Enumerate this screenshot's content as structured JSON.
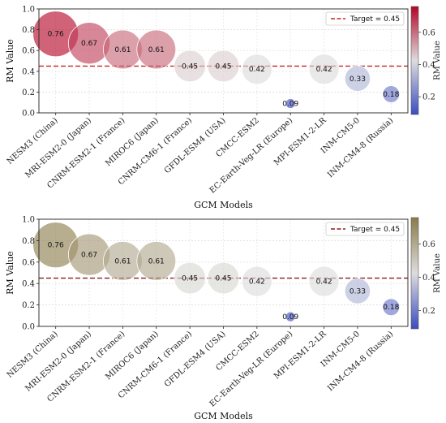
{
  "chart_data": [
    {
      "type": "scatter",
      "categories": [
        "NESM3 (China)",
        "MRI-ESM2-0 (Japan)",
        "CNRM-ESM2-1 (France)",
        "MIROC6 (Japan)",
        "CNRM-CM6-1 (France)",
        "GFDL-ESM4 (USA)",
        "CMCC-ESM2",
        "EC-Earth-Veg-LR (Europe)",
        "MPI-ESM1-2-LR",
        "INM-CM5-0",
        "INM-CM4-8 (Russia)"
      ],
      "values": [
        0.76,
        0.67,
        0.61,
        0.61,
        0.45,
        0.45,
        0.42,
        0.09,
        0.42,
        0.33,
        0.18
      ],
      "value_labels": [
        "0.76",
        "0.67",
        "0.61",
        "0.61",
        "0.45",
        "0.45",
        "0.42",
        "0.09",
        "0.42",
        "0.33",
        "0.18"
      ],
      "xlabel": "GCM Models",
      "ylabel": "RM Value",
      "ylim": [
        0.0,
        1.0
      ],
      "yticks": [
        "0.0",
        "0.2",
        "0.4",
        "0.6",
        "0.8",
        "1.0"
      ],
      "target": {
        "value": 0.45,
        "label": "Target = 0.45",
        "color": "#c62828"
      },
      "legend_position": "top-right",
      "grid": true,
      "colorbar": {
        "label": "RM Value",
        "ticks": [
          "0.2",
          "0.4",
          "0.6"
        ],
        "range": [
          0.09,
          0.76
        ],
        "colormap": "coolwarm",
        "colors": [
          "#3b4cc0",
          "#dddddd",
          "#b40426"
        ]
      }
    },
    {
      "type": "scatter",
      "categories": [
        "NESM3 (China)",
        "MRI-ESM2-0 (Japan)",
        "CNRM-ESM2-1 (France)",
        "MIROC6 (Japan)",
        "CNRM-CM6-1 (France)",
        "GFDL-ESM4 (USA)",
        "CMCC-ESM2",
        "EC-Earth-Veg-LR (Europe)",
        "MPI-ESM1-2-LR",
        "INM-CM5-0",
        "INM-CM4-8 (Russia)"
      ],
      "values": [
        0.76,
        0.67,
        0.61,
        0.61,
        0.45,
        0.45,
        0.42,
        0.09,
        0.42,
        0.33,
        0.18
      ],
      "value_labels": [
        "0.76",
        "0.67",
        "0.61",
        "0.61",
        "0.45",
        "0.45",
        "0.42",
        "0.09",
        "0.42",
        "0.33",
        "0.18"
      ],
      "xlabel": "GCM Models",
      "ylabel": "RM Value",
      "ylim": [
        0.0,
        1.0
      ],
      "yticks": [
        "0.0",
        "0.2",
        "0.4",
        "0.6",
        "0.8",
        "1.0"
      ],
      "target": {
        "value": 0.45,
        "label": "Target = 0.45",
        "color": "#8b1a1a"
      },
      "legend_position": "top-right",
      "grid": true,
      "colorbar": {
        "label": "RM Value",
        "ticks": [
          "0.2",
          "0.4",
          "0.6"
        ],
        "range": [
          0.09,
          0.76
        ],
        "colormap": "coolwarm with gold tint",
        "colors": [
          "#3b4cc0",
          "#dddddd",
          "#8b7a4a"
        ]
      }
    }
  ]
}
